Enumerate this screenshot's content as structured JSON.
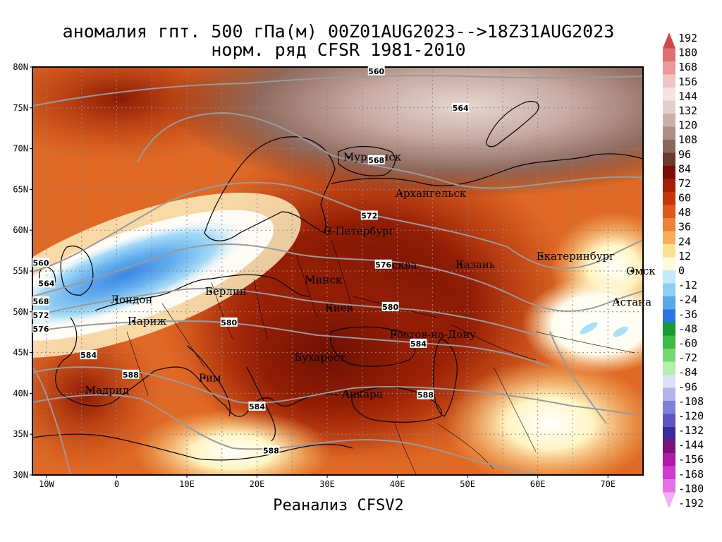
{
  "title_line1": "аномалия гпт. 500 гПа(м) 00Z01AUG2023-->18Z31AUG2023",
  "title_line2": "норм. ряд CFSR 1981-2010",
  "footer": "Реанализ CFSV2",
  "lat_ticks": [
    "80N",
    "75N",
    "70N",
    "65N",
    "60N",
    "55N",
    "50N",
    "45N",
    "40N",
    "35N",
    "30N"
  ],
  "lon_ticks": [
    "10W",
    "0",
    "10E",
    "20E",
    "30E",
    "40E",
    "50E",
    "60E",
    "70E"
  ],
  "cities": [
    {
      "name": "Мурманск",
      "lon": 33.1,
      "lat": 68.97
    },
    {
      "name": "Архангельск",
      "lon": 40.5,
      "lat": 64.5
    },
    {
      "name": "С-Петербург",
      "lon": 30.3,
      "lat": 59.9
    },
    {
      "name": "Москва",
      "lon": 37.6,
      "lat": 55.75
    },
    {
      "name": "Казань",
      "lon": 49.1,
      "lat": 55.8
    },
    {
      "name": "Екатеринбург",
      "lon": 60.6,
      "lat": 56.8
    },
    {
      "name": "Омск",
      "lon": 73.4,
      "lat": 55.0
    },
    {
      "name": "Астана",
      "lon": 71.4,
      "lat": 51.2
    },
    {
      "name": "Минск",
      "lon": 27.6,
      "lat": 53.9
    },
    {
      "name": "Киев",
      "lon": 30.5,
      "lat": 50.45
    },
    {
      "name": "Ростов-на-Дону",
      "lon": 39.7,
      "lat": 47.2
    },
    {
      "name": "Берлин",
      "lon": 13.4,
      "lat": 52.5
    },
    {
      "name": "Лондон",
      "lon": -0.1,
      "lat": 51.5
    },
    {
      "name": "Париж",
      "lon": 2.35,
      "lat": 48.85
    },
    {
      "name": "Бухарест",
      "lon": 26.1,
      "lat": 44.4
    },
    {
      "name": "Рим",
      "lon": 12.5,
      "lat": 41.9
    },
    {
      "name": "Мадрид",
      "lon": -3.7,
      "lat": 40.4
    },
    {
      "name": "Анкара",
      "lon": 32.85,
      "lat": 39.9
    }
  ],
  "contour_labels": [
    {
      "text": "560",
      "lon": 37,
      "lat": 79.5
    },
    {
      "text": "564",
      "lon": 49,
      "lat": 75.0
    },
    {
      "text": "568",
      "lon": 37,
      "lat": 68.6
    },
    {
      "text": "572",
      "lon": 36,
      "lat": 61.8
    },
    {
      "text": "576",
      "lon": 38,
      "lat": 55.8
    },
    {
      "text": "580",
      "lon": 39,
      "lat": 50.6
    },
    {
      "text": "584",
      "lon": 43,
      "lat": 46.1
    },
    {
      "text": "588",
      "lon": 44,
      "lat": 39.8
    },
    {
      "text": "580",
      "lon": 16,
      "lat": 48.7
    },
    {
      "text": "584",
      "lon": 20,
      "lat": 38.4
    },
    {
      "text": "588",
      "lon": 22,
      "lat": 33.0
    },
    {
      "text": "588",
      "lon": 2,
      "lat": 42.3
    },
    {
      "text": "584",
      "lon": -4,
      "lat": 44.7
    },
    {
      "text": "560",
      "lon": -11,
      "lat": 56.0
    },
    {
      "text": "564",
      "lon": -10,
      "lat": 53.5
    },
    {
      "text": "568",
      "lon": -11,
      "lat": 51.3
    },
    {
      "text": "572",
      "lon": -11,
      "lat": 49.6
    },
    {
      "text": "576",
      "lon": -11,
      "lat": 47.9
    }
  ],
  "colorbar": {
    "labels": [
      "192",
      "180",
      "168",
      "156",
      "144",
      "132",
      "120",
      "108",
      "96",
      "84",
      "72",
      "60",
      "48",
      "36",
      "24",
      "12",
      "0",
      "-12",
      "-24",
      "-36",
      "-48",
      "-60",
      "-72",
      "-84",
      "-96",
      "-108",
      "-120",
      "-132",
      "-144",
      "-156",
      "-168",
      "-180",
      "-192"
    ],
    "colors": [
      "#d24848",
      "#e07070",
      "#ea9a9a",
      "#f2c4c4",
      "#f6e2e2",
      "#e4cfc9",
      "#ccb0a8",
      "#ae8e84",
      "#8b665a",
      "#6a3a2d",
      "#7a0e05",
      "#a61f05",
      "#c9340a",
      "#e0561c",
      "#ef8038",
      "#f7af5f",
      "#fbe08f",
      "#fffbd6",
      "#c4eaf8",
      "#8fcdf2",
      "#59a8eb",
      "#2d75e0",
      "#1a9a30",
      "#38bc45",
      "#74d872",
      "#b4f0aa",
      "#dcdff6",
      "#b3b4ee",
      "#7f7fdc",
      "#5b55c8",
      "#3a2aa0",
      "#7a127a",
      "#b018a8",
      "#d03ad0",
      "#e673e6",
      "#f3aef3"
    ]
  }
}
